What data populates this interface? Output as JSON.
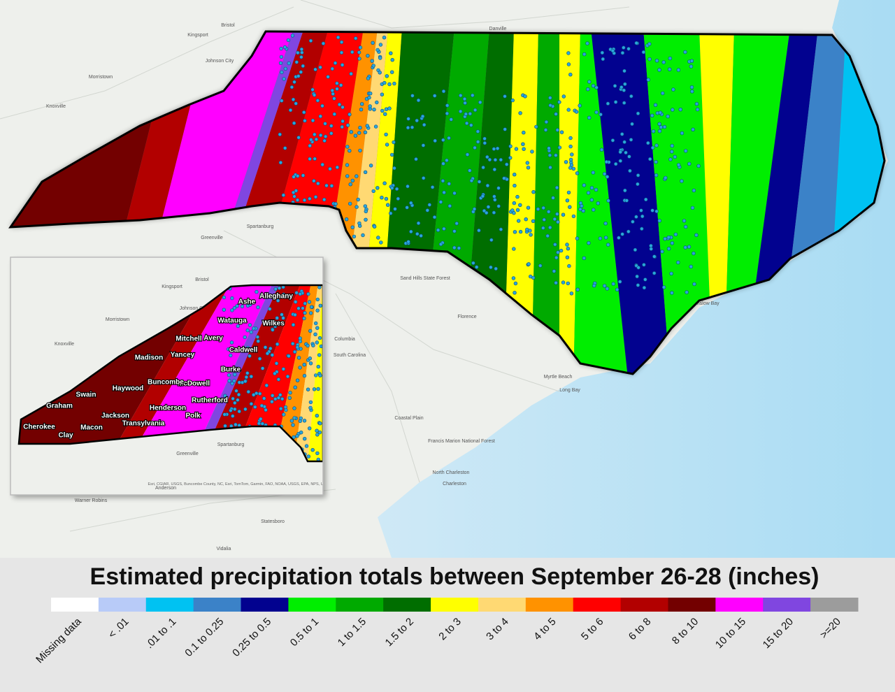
{
  "title": "Estimated precipitation totals between September 26-28 (inches)",
  "legend": [
    {
      "label": "Missing data",
      "color": "#ffffff"
    },
    {
      "label": "< .01",
      "color": "#b8cbf8"
    },
    {
      "label": ".01 to .1",
      "color": "#00c2f2"
    },
    {
      "label": "0.1 to 0.25",
      "color": "#3b82c8"
    },
    {
      "label": "0.25 to 0.5",
      "color": "#02028f"
    },
    {
      "label": "0.5 to 1",
      "color": "#00ee00"
    },
    {
      "label": "1 to 1.5",
      "color": "#00aa00"
    },
    {
      "label": "1.5 to 2",
      "color": "#006e00"
    },
    {
      "label": "2 to 3",
      "color": "#ffff00"
    },
    {
      "label": "3 to 4",
      "color": "#ffd973"
    },
    {
      "label": "4 to 5",
      "color": "#ff9200"
    },
    {
      "label": "5 to 6",
      "color": "#ff0000"
    },
    {
      "label": "6 to 8",
      "color": "#b20000"
    },
    {
      "label": "8 to 10",
      "color": "#730000"
    },
    {
      "label": "10 to 15",
      "color": "#ff00ff"
    },
    {
      "label": "15 to 20",
      "color": "#8046e0"
    },
    {
      "label": ">=20",
      "color": "#9c9c9c"
    }
  ],
  "map_labels": [
    "Bristol",
    "Kingsport",
    "Johnson City",
    "Morristown",
    "Knoxville",
    "Danville",
    "Spartanburg",
    "Greenville",
    "Columbia",
    "South Carolina",
    "Florence",
    "Myrtle Beach",
    "Long Bay",
    "Onslow Bay",
    "North Charleston",
    "Charleston",
    "Coastal Plain",
    "Sand Hills State Forest",
    "Francis Marion National Forest",
    "Warner Robins",
    "Statesboro",
    "Vidalia"
  ],
  "inset": {
    "map_labels": [
      "Bristol",
      "Kingsport",
      "Johnson City",
      "Morristown",
      "Knoxville",
      "Spartanburg",
      "Greenville",
      "Anderson"
    ],
    "county_labels": [
      "Ashe",
      "Alleghany",
      "Watauga",
      "Wilkes",
      "Mitchell",
      "Avery",
      "Caldwell",
      "Madison",
      "Yancey",
      "Burke",
      "McDowell",
      "Haywood",
      "Buncombe",
      "Rutherford",
      "Swain",
      "Graham",
      "Henderson",
      "Jackson",
      "Polk",
      "Transylvania",
      "Cherokee",
      "Macon",
      "Clay"
    ],
    "attribution": "Esri, CGIAR, USGS, Buncombe County, NC, Esri, TomTom, Garmin, FAO, NOAA, USGS, EPA, NPS, USFWS"
  }
}
